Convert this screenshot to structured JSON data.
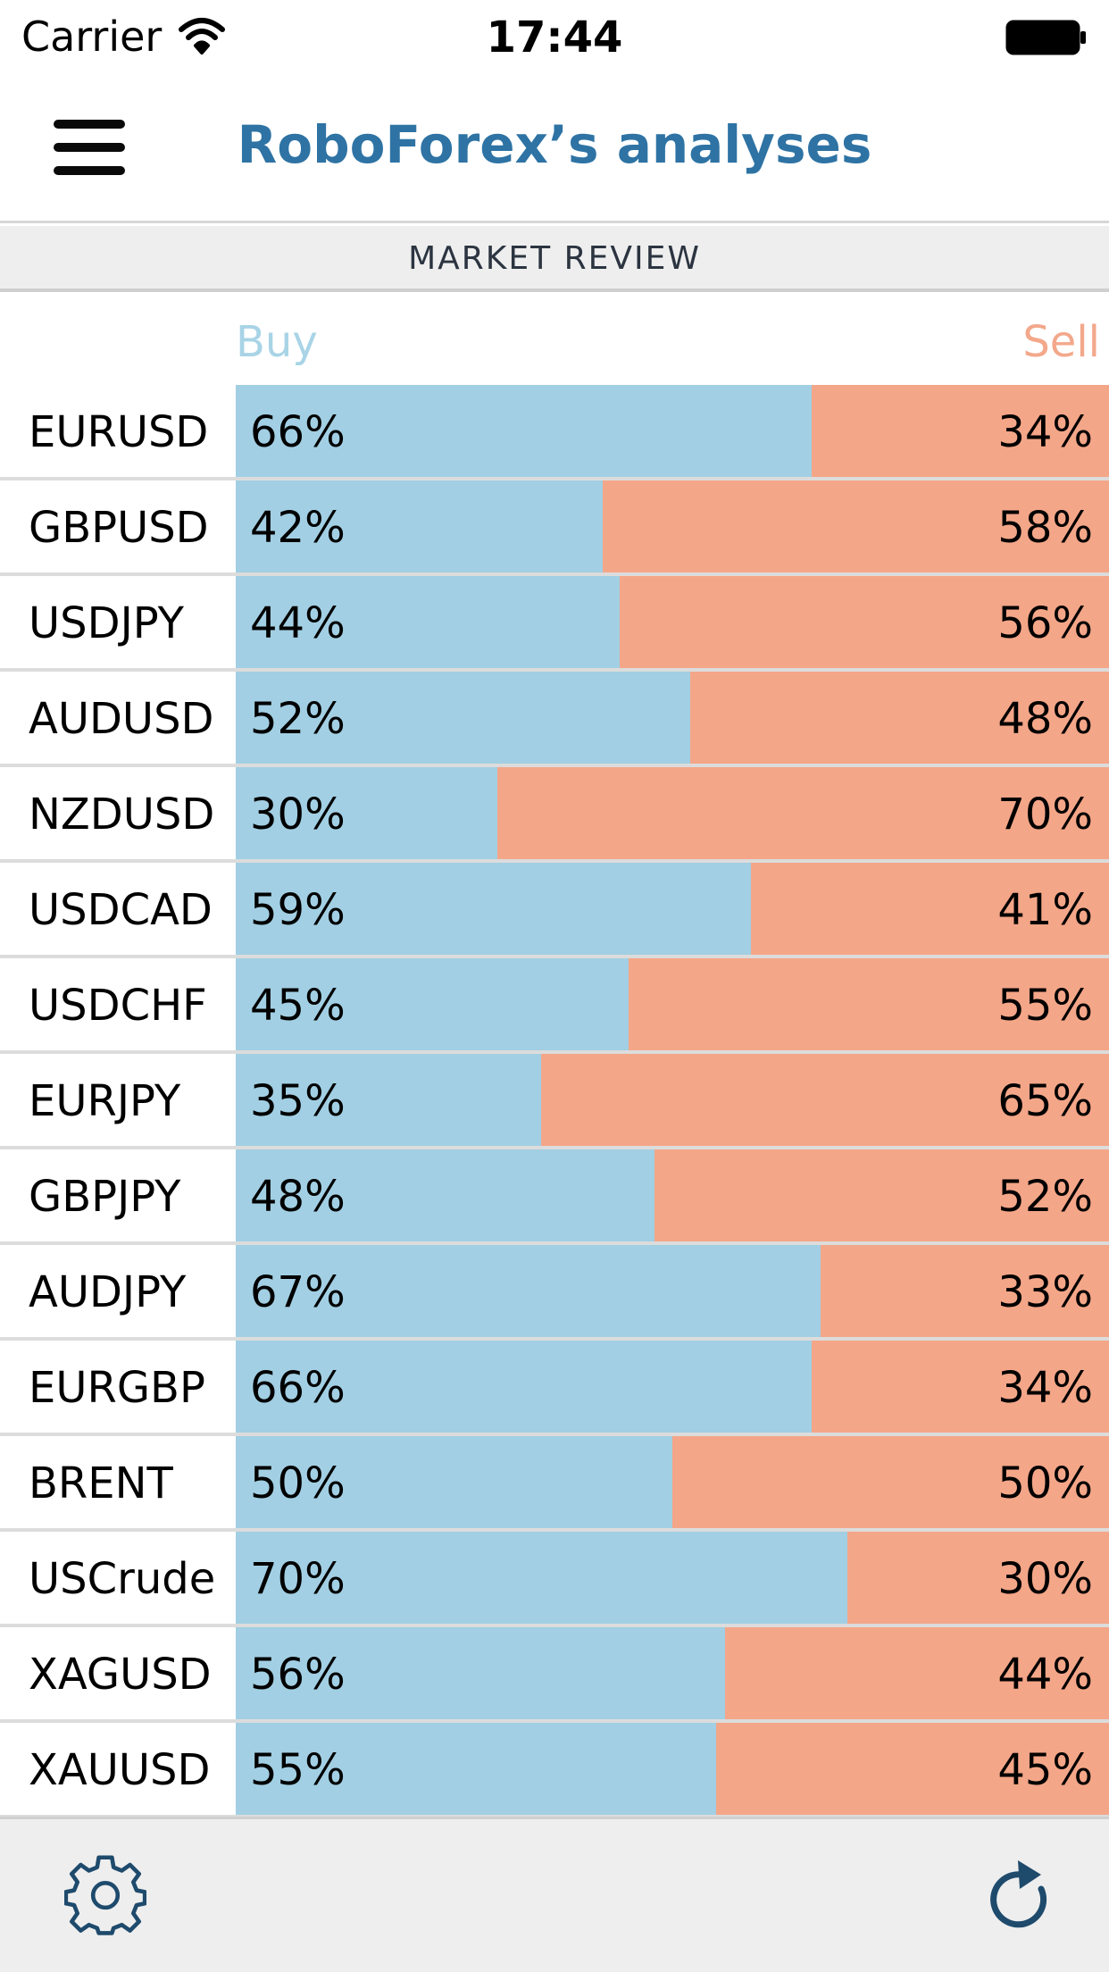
{
  "status_bar": {
    "carrier": "Carrier",
    "time": "17:44",
    "wifi_icon": "wifi-icon",
    "battery_icon": "battery-icon"
  },
  "nav": {
    "title": "RoboForex’s analyses",
    "menu_icon": "hamburger-menu-icon"
  },
  "section": {
    "header": "MARKET REVIEW"
  },
  "legend": {
    "buy": "Buy",
    "sell": "Sell"
  },
  "colors": {
    "buy": "#a2cfe3",
    "sell": "#f4a688",
    "title": "#2e73a4",
    "icon": "#1e4a6c"
  },
  "rows": [
    {
      "symbol": "EURUSD",
      "buy": "66%",
      "sell": "34%",
      "buy_value": 66
    },
    {
      "symbol": "GBPUSD",
      "buy": "42%",
      "sell": "58%",
      "buy_value": 42
    },
    {
      "symbol": "USDJPY",
      "buy": "44%",
      "sell": "56%",
      "buy_value": 44
    },
    {
      "symbol": "AUDUSD",
      "buy": "52%",
      "sell": "48%",
      "buy_value": 52
    },
    {
      "symbol": "NZDUSD",
      "buy": "30%",
      "sell": "70%",
      "buy_value": 30
    },
    {
      "symbol": "USDCAD",
      "buy": "59%",
      "sell": "41%",
      "buy_value": 59
    },
    {
      "symbol": "USDCHF",
      "buy": "45%",
      "sell": "55%",
      "buy_value": 45
    },
    {
      "symbol": "EURJPY",
      "buy": "35%",
      "sell": "65%",
      "buy_value": 35
    },
    {
      "symbol": "GBPJPY",
      "buy": "48%",
      "sell": "52%",
      "buy_value": 48
    },
    {
      "symbol": "AUDJPY",
      "buy": "67%",
      "sell": "33%",
      "buy_value": 67
    },
    {
      "symbol": "EURGBP",
      "buy": "66%",
      "sell": "34%",
      "buy_value": 66
    },
    {
      "symbol": "BRENT",
      "buy": "50%",
      "sell": "50%",
      "buy_value": 50
    },
    {
      "symbol": "USCrude",
      "buy": "70%",
      "sell": "30%",
      "buy_value": 70
    },
    {
      "symbol": "XAGUSD",
      "buy": "56%",
      "sell": "44%",
      "buy_value": 56
    },
    {
      "symbol": "XAUUSD",
      "buy": "55%",
      "sell": "45%",
      "buy_value": 55
    }
  ],
  "toolbar": {
    "settings_icon": "gear-icon",
    "refresh_icon": "refresh-icon"
  }
}
